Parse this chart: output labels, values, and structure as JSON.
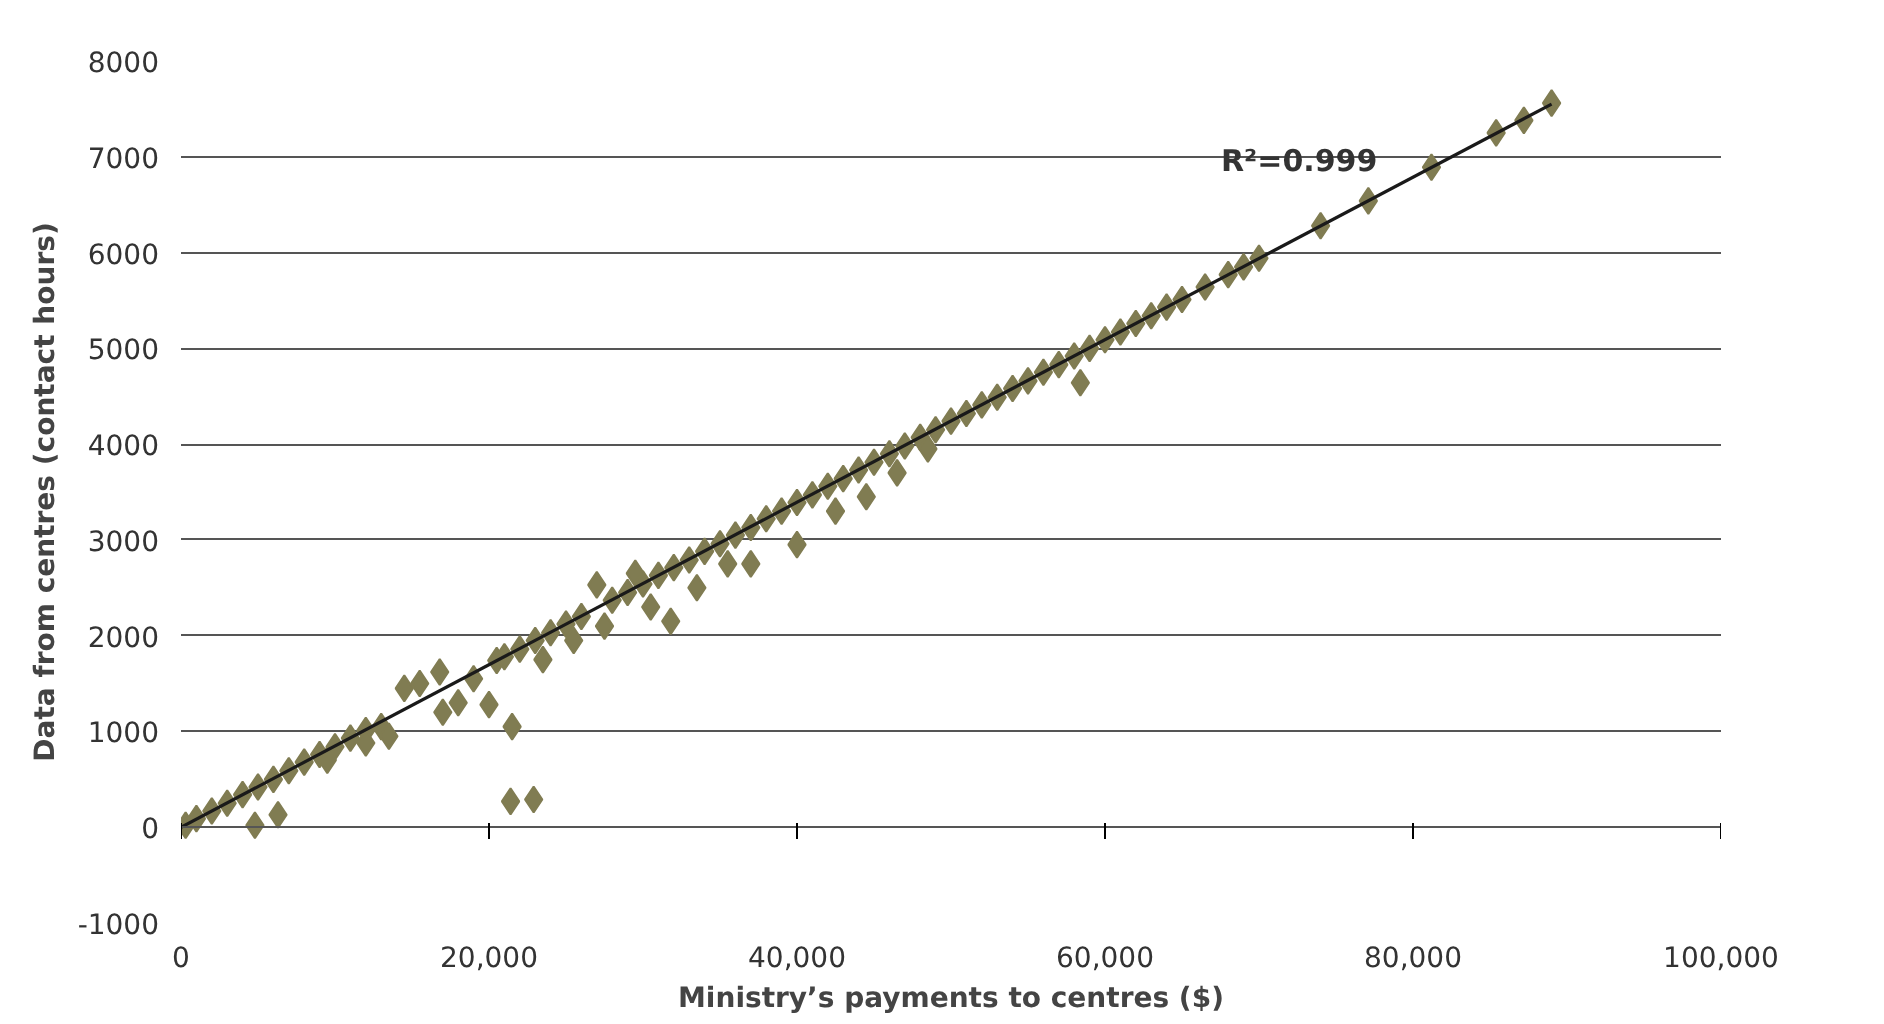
{
  "chart_data": {
    "type": "scatter",
    "xlabel": "Ministry’s payments to centres ($)",
    "ylabel": "Data from centres (contact hours)",
    "xlim": [
      0,
      100000
    ],
    "ylim": [
      -1000,
      8000
    ],
    "xticks": [
      {
        "value": 0,
        "label": "0"
      },
      {
        "value": 20000,
        "label": "20,000"
      },
      {
        "value": 40000,
        "label": "40,000"
      },
      {
        "value": 60000,
        "label": "60,000"
      },
      {
        "value": 80000,
        "label": "80,000"
      },
      {
        "value": 100000,
        "label": "100,000"
      }
    ],
    "yticks": [
      -1000,
      0,
      1000,
      2000,
      3000,
      4000,
      5000,
      6000,
      7000,
      8000
    ],
    "grid": "y",
    "annotations": [
      "R²=0.999"
    ],
    "series": [
      {
        "color": "#807c52",
        "marker": "diamond",
        "x": [
          300,
          1000,
          2000,
          3000,
          4000,
          5000,
          6000,
          7000,
          8000,
          9000,
          9500,
          10000,
          11000,
          12000,
          12000,
          13000,
          13500,
          14500,
          15500,
          16800,
          17000,
          18000,
          19000,
          20000,
          20500,
          21000,
          21500,
          21400,
          22900,
          22000,
          23000,
          23500,
          24000,
          25000,
          25500,
          26000,
          27000,
          27500,
          28000,
          29000,
          29500,
          30000,
          30500,
          31000,
          31800,
          32000,
          33000,
          33500,
          34000,
          35000,
          35500,
          36000,
          37000,
          37000,
          38000,
          39000,
          40000,
          40000,
          41000,
          42000,
          42500,
          43000,
          44000,
          44500,
          45000,
          46000,
          46500,
          47000,
          48000,
          48500,
          49000,
          50000,
          51000,
          52000,
          53000,
          54000,
          55000,
          56000,
          57000,
          58000,
          58400,
          59000,
          60000,
          61000,
          62000,
          63000,
          64000,
          65000,
          66500,
          68000,
          69000,
          70000,
          74000,
          77100,
          81200,
          85400,
          87200,
          89000,
          4800,
          6300
        ],
        "values": [
          20,
          90,
          170,
          250,
          340,
          420,
          500,
          590,
          680,
          760,
          700,
          840,
          930,
          1010,
          880,
          1050,
          950,
          1450,
          1500,
          1620,
          1200,
          1300,
          1550,
          1280,
          1740,
          1780,
          1050,
          270,
          290,
          1860,
          1950,
          1750,
          2030,
          2120,
          1950,
          2200,
          2530,
          2100,
          2370,
          2450,
          2650,
          2540,
          2300,
          2630,
          2150,
          2710,
          2790,
          2500,
          2880,
          2960,
          2750,
          3050,
          3130,
          2750,
          3220,
          3300,
          2950,
          3390,
          3470,
          3560,
          3300,
          3640,
          3730,
          3450,
          3810,
          3900,
          3700,
          3980,
          4070,
          3950,
          4150,
          4240,
          4320,
          4410,
          4490,
          4580,
          4660,
          4750,
          4830,
          4920,
          4640,
          5000,
          5090,
          5170,
          5260,
          5340,
          5430,
          5510,
          5640,
          5770,
          5850,
          5940,
          6280,
          6540,
          6890,
          7250,
          7380,
          7560,
          20,
          130
        ]
      },
      {
        "type": "line",
        "color": "#1a1a1a",
        "x": [
          0,
          89000
        ],
        "values": [
          0,
          7550
        ]
      }
    ]
  }
}
